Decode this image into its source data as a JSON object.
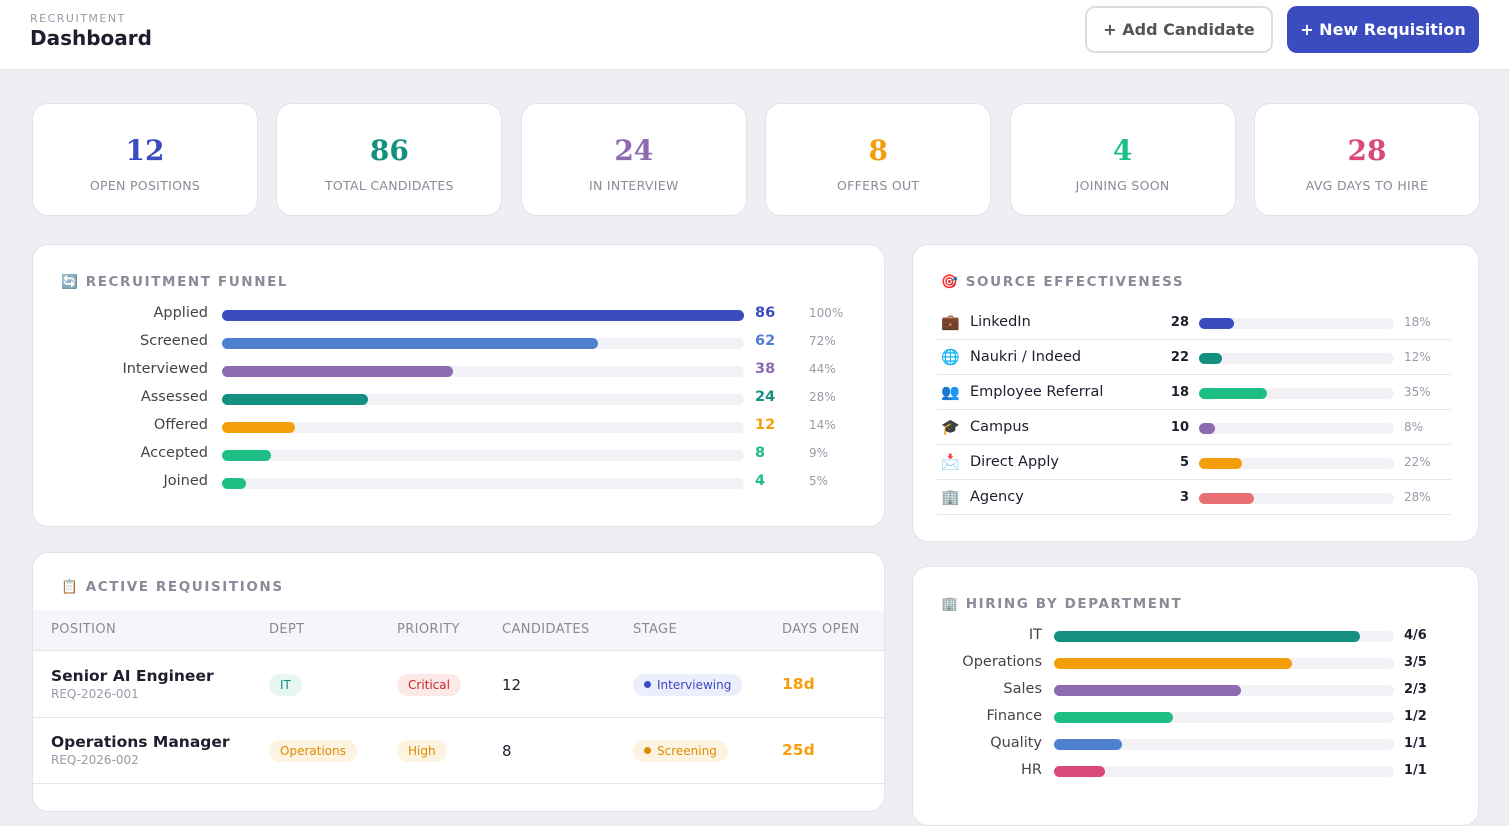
{
  "header": {
    "eyebrow": "RECRUITMENT",
    "title": "Dashboard",
    "buttons": [
      "+ Add Candidate",
      "+ New Requisition"
    ]
  },
  "kpis": [
    {
      "value": 12,
      "label": "OPEN POSITIONS",
      "color": "#3b4bc0"
    },
    {
      "value": 86,
      "label": "TOTAL CANDIDATES",
      "color": "#13907f"
    },
    {
      "value": 24,
      "label": "IN INTERVIEW",
      "color": "#8c6bb1"
    },
    {
      "value": 8,
      "label": "OFFERS OUT",
      "color": "#f59e0b"
    },
    {
      "value": 4,
      "label": "JOINING SOON",
      "color": "#1dbf84"
    },
    {
      "value": 28,
      "label": "AVG DAYS TO HIRE",
      "color": "#d94a7a"
    }
  ],
  "funnel": {
    "icon": "🔄",
    "title": "RECRUITMENT FUNNEL",
    "rows": [
      {
        "name": "Applied",
        "value": 86,
        "pct": "100%",
        "color": "#3b4bc0"
      },
      {
        "name": "Screened",
        "value": 62,
        "pct": "72%",
        "color": "#4f7fcf"
      },
      {
        "name": "Interviewed",
        "value": 38,
        "pct": "44%",
        "color": "#8c6bb1"
      },
      {
        "name": "Assessed",
        "value": 24,
        "pct": "28%",
        "color": "#13907f"
      },
      {
        "name": "Offered",
        "value": 12,
        "pct": "14%",
        "color": "#f59e0b"
      },
      {
        "name": "Accepted",
        "value": 8,
        "pct": "9%",
        "color": "#1dbf84"
      },
      {
        "name": "Joined",
        "value": 4,
        "pct": "5%",
        "color": "#1dbf84"
      }
    ]
  },
  "sources": {
    "icon": "🎯",
    "title": "SOURCE EFFECTIVENESS",
    "rows": [
      {
        "icon": "💼",
        "name": "LinkedIn",
        "count": 28,
        "pct": 18,
        "pct_label": "18%",
        "color": "#3b4bc0"
      },
      {
        "icon": "🌐",
        "name": "Naukri / Indeed",
        "count": 22,
        "pct": 12,
        "pct_label": "12%",
        "color": "#13907f"
      },
      {
        "icon": "👥",
        "name": "Employee Referral",
        "count": 18,
        "pct": 35,
        "pct_label": "35%",
        "color": "#1dbf84"
      },
      {
        "icon": "🎓",
        "name": "Campus",
        "count": 10,
        "pct": 8,
        "pct_label": "8%",
        "color": "#8c6bb1"
      },
      {
        "icon": "📩",
        "name": "Direct Apply",
        "count": 5,
        "pct": 22,
        "pct_label": "22%",
        "color": "#f59e0b"
      },
      {
        "icon": "🏢",
        "name": "Agency",
        "count": 3,
        "pct": 28,
        "pct_label": "28%",
        "color": "#e86f73"
      }
    ]
  },
  "requisitions": {
    "icon": "📋",
    "title": "ACTIVE REQUISITIONS",
    "columns": [
      "POSITION",
      "DEPT",
      "PRIORITY",
      "CANDIDATES",
      "STAGE",
      "DAYS OPEN"
    ],
    "rows": [
      {
        "position": "Senior AI Engineer",
        "id": "REQ-2026-001",
        "dept": "IT",
        "priority": "Critical",
        "candidates": 12,
        "stage": "Interviewing",
        "days": "18d"
      },
      {
        "position": "Operations Manager",
        "id": "REQ-2026-002",
        "dept": "Operations",
        "priority": "High",
        "candidates": 8,
        "stage": "Screening",
        "days": "25d"
      }
    ]
  },
  "departments": {
    "icon": "🏢",
    "title": "HIRING BY DEPARTMENT",
    "rows": [
      {
        "name": "IT",
        "progress": 90,
        "label": "4/6",
        "color": "#13907f"
      },
      {
        "name": "Operations",
        "progress": 70,
        "label": "3/5",
        "color": "#f59e0b"
      },
      {
        "name": "Sales",
        "progress": 55,
        "label": "2/3",
        "color": "#8c6bb1"
      },
      {
        "name": "Finance",
        "progress": 35,
        "label": "1/2",
        "color": "#1dbf84"
      },
      {
        "name": "Quality",
        "progress": 20,
        "label": "1/1",
        "color": "#4f7fcf"
      },
      {
        "name": "HR",
        "progress": 15,
        "label": "1/1",
        "color": "#d94a7a"
      }
    ]
  }
}
